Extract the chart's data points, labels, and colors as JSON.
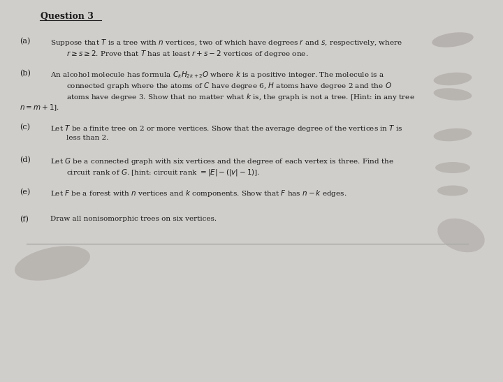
{
  "title": "Question 3",
  "background_color": "#d0cecb",
  "paper_color": "#eeeceb",
  "text_color": "#1a1a1a",
  "blob_color": "#b0aca8",
  "title_fs": 8.5,
  "body_fs": 7.2,
  "parts": [
    {
      "label": "(a)",
      "lines": [
        "Suppose that $T$ is a tree with $n$ vertices, two of which have degrees $r$ and $s$, respectively, where",
        "$r \\geq s \\geq 2$. Prove that $T$ has at least $r + s - 2$ vertices of degree one."
      ],
      "indent_first": false,
      "indent_second": true
    },
    {
      "label": "(b)",
      "lines": [
        "An alcohol molecule has formula $C_kH_{2k+2}O$ where $k$ is a positive integer. The molecule is a",
        "connected graph where the atoms of $C$ have degree 6, $H$ atoms have degree 2 and the $O$",
        "atoms have degree 3. Show that no matter what $k$ is, the graph is not a tree. [Hint: in any tree",
        "$n = m + 1$]."
      ],
      "indent_first": false,
      "indent_second": true,
      "last_line_indent": false
    },
    {
      "label": "(c)",
      "lines": [
        "Let $T$ be a finite tree on 2 or more vertices. Show that the average degree of the vertices in $T$ is",
        "less than 2."
      ],
      "indent_first": false,
      "indent_second": true
    },
    {
      "label": "(d)",
      "lines": [
        "Let $G$ be a connected graph with six vertices and the degree of each vertex is three. Find the",
        "circuit rank of $G$. [hint: circuit rank $= |E| - (|v| - 1)$]."
      ],
      "indent_first": false,
      "indent_second": true
    },
    {
      "label": "(e)",
      "lines": [
        "Let $F$ be a forest with $n$ vertices and $k$ components. Show that $F$ has $n - k$ edges."
      ],
      "indent_first": false,
      "indent_second": false
    },
    {
      "label": "(f)",
      "lines": [
        "Draw all nonisomorphic trees on six vertices."
      ],
      "indent_first": false,
      "indent_second": false
    }
  ]
}
